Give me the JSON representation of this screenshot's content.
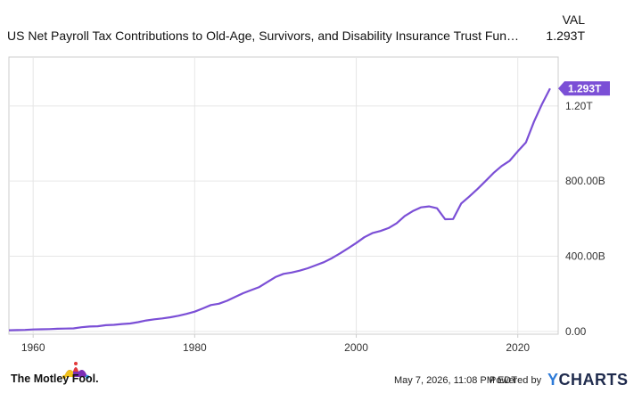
{
  "header": {
    "series_title": "US Net Payroll Tax Contributions to Old-Age, Survivors, and Disability Insurance Trust Fund Recei...",
    "val_label": "VAL",
    "val_value": "1.293T"
  },
  "footer": {
    "brand": "The Motley Fool.",
    "timestamp": "May 7, 2026, 11:08 PM EDT",
    "powered_by": "Powered by",
    "ycharts_y": "Y",
    "ycharts_rest": "CHARTS"
  },
  "colors": {
    "line": "#7b4fd6",
    "grid": "#e6e6e6",
    "axis": "#cccccc"
  },
  "chart_data": {
    "type": "line",
    "title": "US Net Payroll Tax Contributions to Old-Age, Survivors, and Disability Insurance Trust Fund Recei...",
    "xlabel": "",
    "ylabel": "",
    "xlim": [
      1957,
      2025
    ],
    "ylim": [
      -15,
      1460
    ],
    "x_ticks": [
      1960,
      1980,
      2000,
      2020
    ],
    "x_tick_labels": [
      "1960",
      "1980",
      "2000",
      "2020"
    ],
    "y_ticks": [
      0,
      400,
      800,
      1200
    ],
    "y_tick_labels": [
      "0.00",
      "400.00B",
      "800.00B",
      "1.20T"
    ],
    "grid": true,
    "end_label": "1.293T",
    "series": [
      {
        "x": [
          1957,
          1958,
          1959,
          1960,
          1961,
          1962,
          1963,
          1964,
          1965,
          1966,
          1967,
          1968,
          1969,
          1970,
          1971,
          1972,
          1973,
          1974,
          1975,
          1976,
          1977,
          1978,
          1979,
          1980,
          1981,
          1982,
          1983,
          1984,
          1985,
          1986,
          1987,
          1988,
          1989,
          1990,
          1991,
          1992,
          1993,
          1994,
          1995,
          1996,
          1997,
          1998,
          1999,
          2000,
          2001,
          2002,
          2003,
          2004,
          2005,
          2006,
          2007,
          2008,
          2009,
          2010,
          2011,
          2012,
          2013,
          2014,
          2015,
          2016,
          2017,
          2018,
          2019,
          2020,
          2021,
          2022,
          2023,
          2024
        ],
        "y": [
          6,
          7,
          8,
          10,
          11,
          12,
          14,
          15,
          16,
          22,
          26,
          27,
          33,
          35,
          39,
          42,
          49,
          58,
          64,
          69,
          75,
          83,
          93,
          105,
          122,
          140,
          147,
          163,
          183,
          203,
          220,
          236,
          263,
          289,
          306,
          313,
          323,
          336,
          352,
          368,
          390,
          415,
          442,
          470,
          501,
          523,
          534,
          550,
          575,
          614,
          640,
          660,
          665,
          655,
          597,
          598,
          681,
          718,
          757,
          800,
          843,
          880,
          908,
          958,
          1005,
          1115,
          1210,
          1293
        ]
      }
    ]
  }
}
